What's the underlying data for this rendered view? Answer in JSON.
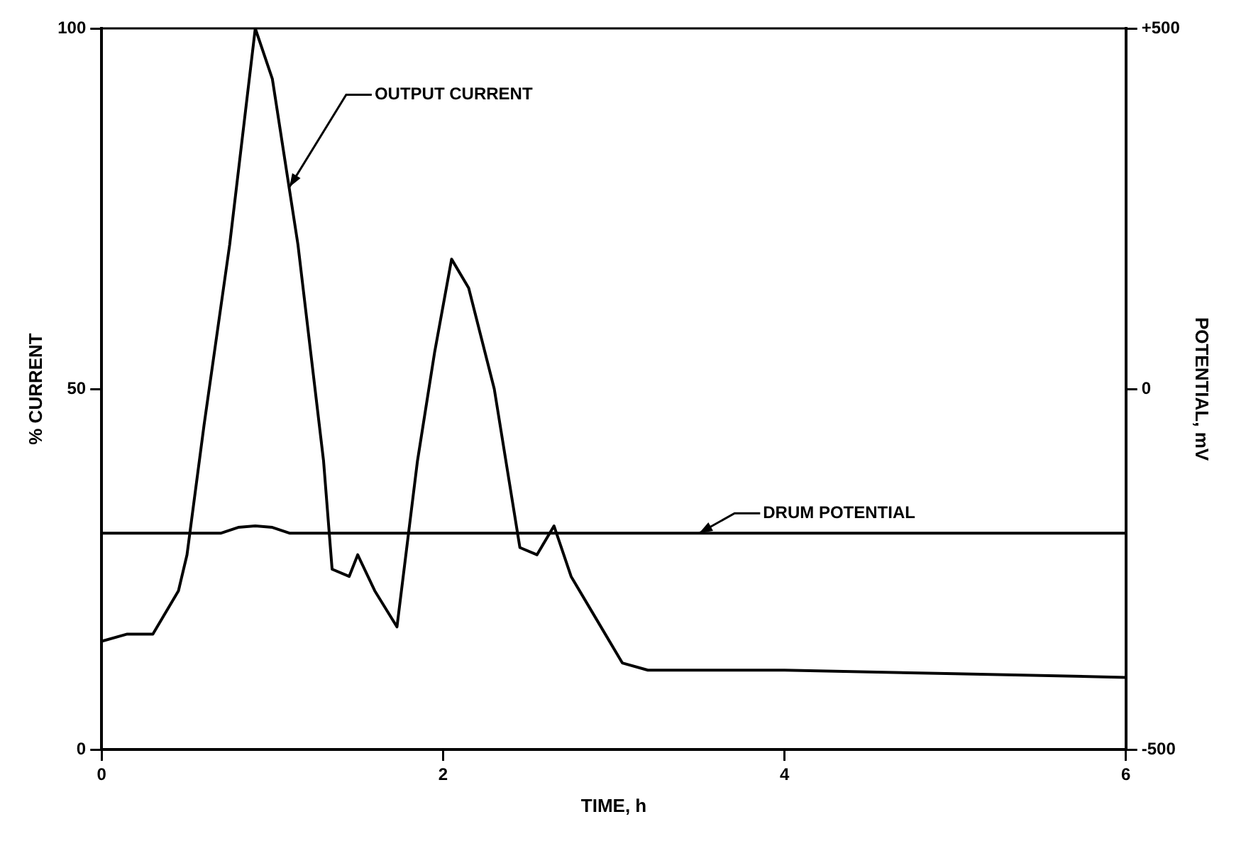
{
  "chart_data": {
    "type": "line",
    "xlabel": "TIME, h",
    "ylabel": "% CURRENT",
    "y2label": "POTENTIAL, mV",
    "series": [
      {
        "type": "line",
        "color": "#000000",
        "x": [
          0,
          0.15,
          0.3,
          0.45,
          0.5,
          0.6,
          0.75,
          0.9,
          1.0,
          1.15,
          1.3,
          1.35,
          1.45,
          1.5,
          1.6,
          1.73,
          1.85,
          1.95,
          2.05,
          2.15,
          2.3,
          2.45,
          2.55,
          2.65,
          2.75,
          2.9,
          3.05,
          3.2,
          4,
          5,
          6
        ],
        "values": [
          15,
          16,
          16,
          22,
          27,
          45,
          70,
          100,
          93,
          70,
          40,
          25,
          24,
          27,
          22,
          17,
          40,
          55,
          68,
          64,
          50,
          28,
          27,
          31,
          24,
          18,
          12,
          11,
          11,
          10.5,
          10
        ]
      },
      {
        "type": "line",
        "axis": "y2",
        "color": "#000000",
        "x": [
          0,
          0.7,
          0.8,
          0.9,
          1.0,
          1.1,
          6
        ],
        "values": [
          -200,
          -200,
          -192,
          -190,
          -192,
          -200,
          -200
        ]
      }
    ],
    "xlim": [
      0,
      6
    ],
    "xticks": [
      0,
      2,
      4,
      6
    ],
    "ylim": [
      0,
      100
    ],
    "yticks": [
      0,
      50,
      100
    ],
    "y2lim": [
      -500,
      500
    ],
    "y2ticks": [
      -500,
      0,
      {
        "value": 500,
        "label": "+500"
      }
    ],
    "annotations": [
      {
        "text": "OUTPUT CURRENT",
        "x": 1.1,
        "y": 78
      },
      {
        "text": "DRUM POTENTIAL",
        "x": 3.5,
        "y": 30
      }
    ],
    "grid": false,
    "legend": false,
    "marker": "none",
    "line_style": "solid"
  }
}
